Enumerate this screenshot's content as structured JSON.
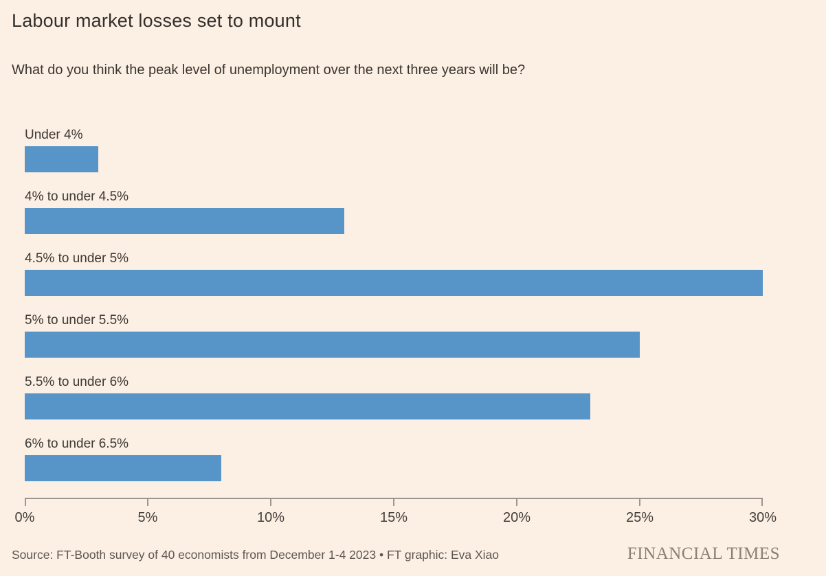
{
  "header": {
    "title": "Labour market losses set to mount",
    "subtitle": "What do you think the peak level of unemployment over the next three years will be?"
  },
  "chart_data": {
    "type": "bar",
    "orientation": "horizontal",
    "title": "Labour market losses set to mount",
    "subtitle": "What do you think the peak level of unemployment over the next three years will be?",
    "categories": [
      "Under 4%",
      "4% to under 4.5%",
      "4.5% to under 5%",
      "5% to under 5.5%",
      "5.5% to under 6%",
      "6% to under 6.5%"
    ],
    "values": [
      3,
      13,
      30,
      25,
      23,
      8
    ],
    "value_unit": "%",
    "xlabel": "",
    "ylabel": "",
    "xlim": [
      0,
      30
    ],
    "x_ticks": [
      "0%",
      "5%",
      "10%",
      "15%",
      "20%",
      "25%",
      "30%"
    ],
    "grid": false,
    "legend": "none",
    "bar_color": "#5795c9"
  },
  "footer": {
    "source": "Source: FT-Booth survey of 40 economists from December 1-4 2023 • FT graphic: Eva Xiao",
    "logo": "FINANCIAL TIMES"
  },
  "colors": {
    "background": "#fcefe3",
    "bar": "#5795c9",
    "axis": "#9d968e",
    "title_text": "#33302c",
    "label_text": "#3c3833",
    "footer_text": "#5d5750",
    "logo_text": "#8a8073"
  }
}
